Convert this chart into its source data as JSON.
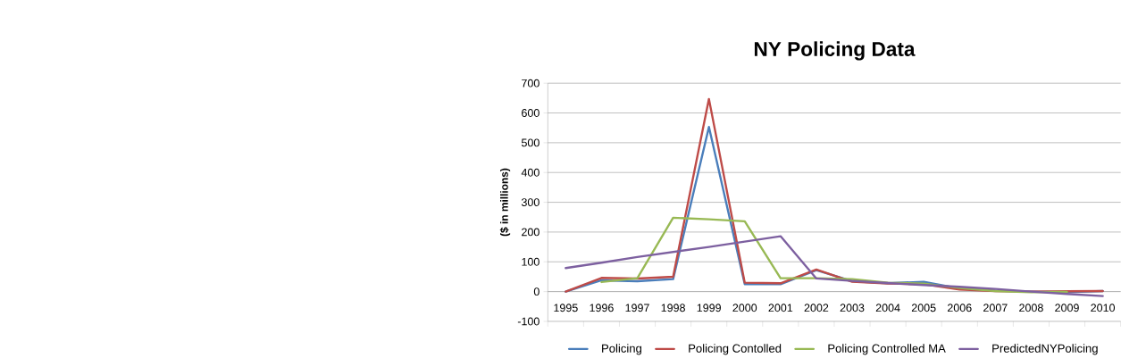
{
  "chart_data": {
    "type": "line",
    "title": "NY Policing Data",
    "ylabel": "($ in millions)",
    "categories": [
      "1995",
      "1996",
      "1997",
      "1998",
      "1999",
      "2000",
      "2001",
      "2002",
      "2003",
      "2004",
      "2005",
      "2006",
      "2007",
      "2008",
      "2009",
      "2010"
    ],
    "series": [
      {
        "name": "Policing",
        "color": "#4a7ebb",
        "values": [
          0,
          38,
          35,
          42,
          553,
          25,
          25,
          72,
          35,
          28,
          33,
          10,
          3,
          0,
          -2,
          2
        ]
      },
      {
        "name": "Policing Contolled",
        "color": "#be4b48",
        "values": [
          0,
          46,
          44,
          50,
          647,
          30,
          28,
          74,
          33,
          27,
          25,
          7,
          2,
          0,
          1,
          2
        ]
      },
      {
        "name": "Policing Controlled MA",
        "color": "#98b954",
        "values": [
          null,
          32,
          45,
          248,
          243,
          236,
          45,
          45,
          42,
          30,
          27,
          12,
          2,
          -2,
          -1,
          null
        ]
      },
      {
        "name": "PredictedNYPolicing",
        "color": "#7d60a0",
        "values": [
          79,
          97,
          116,
          133,
          150,
          168,
          186,
          44,
          36,
          29,
          22,
          16,
          9,
          0,
          -8,
          -15
        ]
      }
    ],
    "ylim": [
      -100,
      700
    ],
    "yticks": [
      -100,
      0,
      100,
      200,
      300,
      400,
      500,
      600,
      700
    ],
    "grid": "y",
    "legend": "bottom",
    "marker": "none",
    "line_style": "solid"
  }
}
